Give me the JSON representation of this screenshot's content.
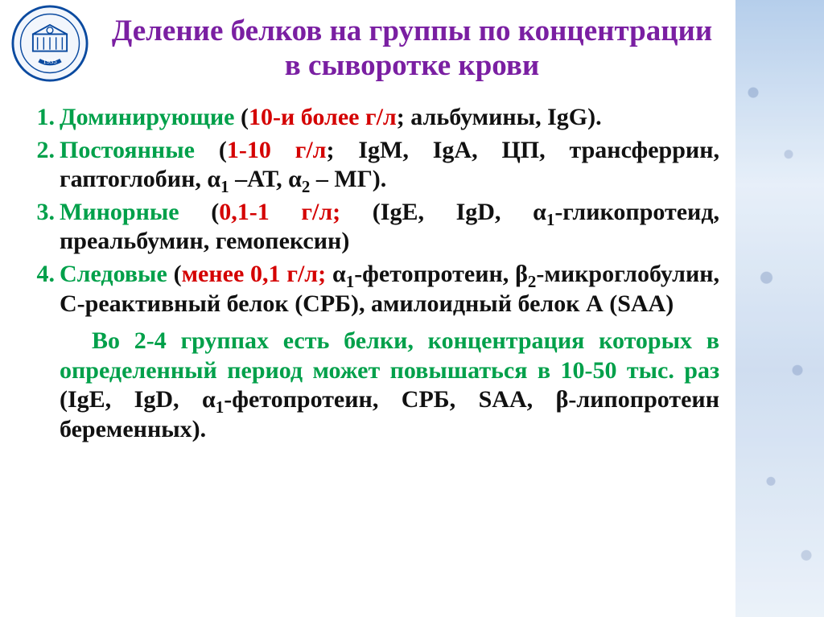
{
  "logo": {
    "ring_color": "#0a4aa0",
    "inner_bg": "#f2f6fc",
    "year": "1935"
  },
  "title": {
    "text": "Деление белков на группы по концентрации в сыворотке крови",
    "color": "#7a1fa2",
    "fontsize_pt": 28
  },
  "list": {
    "number_color": "#00a04a",
    "label_color": "#00a04a",
    "range_color": "#d40000",
    "body_color": "#111111",
    "fontsize_pt": 22,
    "items": [
      {
        "label": "Доминирующие",
        "range": "10-и более г/л",
        "examples_html": "альбумины, IgG).",
        "open": "("
      },
      {
        "label": "Постоянные",
        "range": "1-10 г/л",
        "examples_html": "IgM, IgA, ЦП, трансферрин, гаптоглобин, α<sub>1</sub> –АТ,  α<sub>2</sub> – МГ).",
        "open": "("
      },
      {
        "label": "Минорные",
        "range": "0,1-1 г/л;",
        "examples_html": "(IgE, IgD, α<sub>1</sub>-гликопротеид, преальбумин, гемопексин)",
        "open": "("
      },
      {
        "label": "Следовые",
        "range": "менее 0,1 г/л;",
        "examples_html": "α<sub>1</sub>-фетопротеин, β<sub>2</sub>-микроглобулин, С-реактивный белок (СРБ), амилоидный белок А (SAA)",
        "open": "("
      }
    ]
  },
  "note": {
    "prefix": "Во 2-4 группах есть белки, концентрация которых в определенный период может повышаться в 10-50 тыс. раз",
    "suffix_html": " (IgE, IgD, α<sub>1</sub>-фетопротеин, СРБ, SAA, β-липопротеин беременных)."
  },
  "bg_strip": {
    "gradient_from": "#a9c6e8",
    "gradient_to": "#e8f0f9"
  }
}
